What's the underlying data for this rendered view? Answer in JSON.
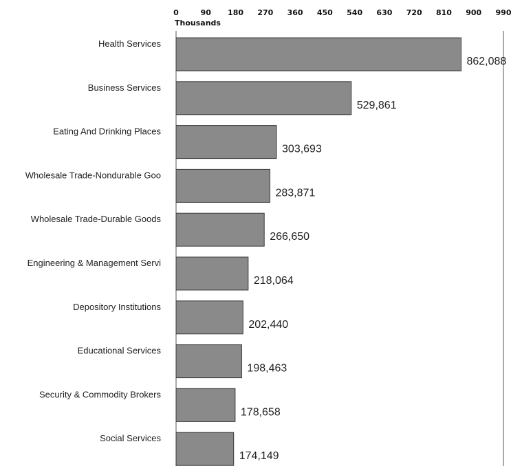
{
  "chart_data": {
    "type": "bar",
    "orientation": "horizontal",
    "xlabel": "Thousands",
    "xlim": [
      0,
      990
    ],
    "x_ticks": [
      "0",
      "90",
      "180",
      "270",
      "360",
      "450",
      "540",
      "630",
      "720",
      "810",
      "900",
      "990"
    ],
    "axis_position": "top",
    "categories": [
      "Health Services",
      "Business Services",
      "Eating And Drinking Places",
      "Wholesale Trade-Nondurable Goo",
      "Wholesale Trade-Durable Goods",
      "Engineering & Management Servi",
      "Depository Institutions",
      "Educational Services",
      "Security & Commodity Brokers",
      "Social Services"
    ],
    "values": [
      862088,
      529861,
      303693,
      283871,
      266650,
      218064,
      202440,
      198463,
      178658,
      174149
    ],
    "value_labels": [
      "862,088",
      "529,861",
      "303,693",
      "283,871",
      "266,650",
      "218,064",
      "202,440",
      "198,463",
      "178,658",
      "174,149"
    ],
    "colors": {
      "bar": "#8a8a8a",
      "bar_edge": "#3a3a3a"
    }
  }
}
